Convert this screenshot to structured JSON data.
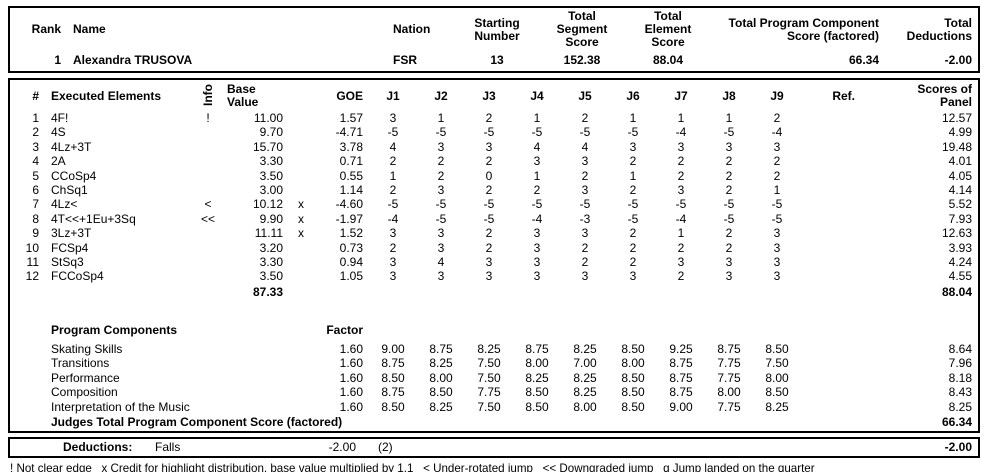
{
  "summary": {
    "headers": {
      "rank": "Rank",
      "name": "Name",
      "nation": "Nation",
      "starting_number": "Starting\nNumber",
      "total_segment": "Total\nSegment\nScore",
      "total_element": "Total\nElement\nScore",
      "total_pcs": "Total Program Component\nScore (factored)",
      "total_deductions": "Total\nDeductions"
    },
    "skater": {
      "rank": "1",
      "name": "Alexandra TRUSOVA",
      "nation": "FSR",
      "starting_number": "13",
      "total_segment": "152.38",
      "total_element": "88.04",
      "total_pcs": "66.34",
      "total_deductions": "-2.00"
    }
  },
  "elements_table": {
    "headers": {
      "num": "#",
      "name": "Executed Elements",
      "info": "Info",
      "base": "Base\nValue",
      "goe": "GOE",
      "judges": [
        "J1",
        "J2",
        "J3",
        "J4",
        "J5",
        "J6",
        "J7",
        "J8",
        "J9"
      ],
      "ref": "Ref.",
      "panel": "Scores of\nPanel"
    },
    "rows": [
      {
        "num": "1",
        "name": "4F!",
        "info": "!",
        "base": "11.00",
        "x": "",
        "goe": "1.57",
        "j": [
          "3",
          "1",
          "2",
          "1",
          "2",
          "1",
          "1",
          "1",
          "2"
        ],
        "ref": "",
        "panel": "12.57"
      },
      {
        "num": "2",
        "name": "4S",
        "info": "",
        "base": "9.70",
        "x": "",
        "goe": "-4.71",
        "j": [
          "-5",
          "-5",
          "-5",
          "-5",
          "-5",
          "-5",
          "-4",
          "-5",
          "-4"
        ],
        "ref": "",
        "panel": "4.99"
      },
      {
        "num": "3",
        "name": "4Lz+3T",
        "info": "",
        "base": "15.70",
        "x": "",
        "goe": "3.78",
        "j": [
          "4",
          "3",
          "3",
          "4",
          "4",
          "3",
          "3",
          "3",
          "3"
        ],
        "ref": "",
        "panel": "19.48"
      },
      {
        "num": "4",
        "name": "2A",
        "info": "",
        "base": "3.30",
        "x": "",
        "goe": "0.71",
        "j": [
          "2",
          "2",
          "2",
          "3",
          "3",
          "2",
          "2",
          "2",
          "2"
        ],
        "ref": "",
        "panel": "4.01"
      },
      {
        "num": "5",
        "name": "CCoSp4",
        "info": "",
        "base": "3.50",
        "x": "",
        "goe": "0.55",
        "j": [
          "1",
          "2",
          "0",
          "1",
          "2",
          "1",
          "2",
          "2",
          "2"
        ],
        "ref": "",
        "panel": "4.05"
      },
      {
        "num": "6",
        "name": "ChSq1",
        "info": "",
        "base": "3.00",
        "x": "",
        "goe": "1.14",
        "j": [
          "2",
          "3",
          "2",
          "2",
          "3",
          "2",
          "3",
          "2",
          "1"
        ],
        "ref": "",
        "panel": "4.14"
      },
      {
        "num": "7",
        "name": "4Lz<",
        "info": "<",
        "base": "10.12",
        "x": "x",
        "goe": "-4.60",
        "j": [
          "-5",
          "-5",
          "-5",
          "-5",
          "-5",
          "-5",
          "-5",
          "-5",
          "-5"
        ],
        "ref": "",
        "panel": "5.52"
      },
      {
        "num": "8",
        "name": "4T<<+1Eu+3Sq",
        "info": "<<",
        "base": "9.90",
        "x": "x",
        "goe": "-1.97",
        "j": [
          "-4",
          "-5",
          "-5",
          "-4",
          "-3",
          "-5",
          "-4",
          "-5",
          "-5"
        ],
        "ref": "",
        "panel": "7.93"
      },
      {
        "num": "9",
        "name": "3Lz+3T",
        "info": "",
        "base": "11.11",
        "x": "x",
        "goe": "1.52",
        "j": [
          "3",
          "3",
          "2",
          "3",
          "3",
          "2",
          "1",
          "2",
          "3"
        ],
        "ref": "",
        "panel": "12.63"
      },
      {
        "num": "10",
        "name": "FCSp4",
        "info": "",
        "base": "3.20",
        "x": "",
        "goe": "0.73",
        "j": [
          "2",
          "3",
          "2",
          "3",
          "2",
          "2",
          "2",
          "2",
          "3"
        ],
        "ref": "",
        "panel": "3.93"
      },
      {
        "num": "11",
        "name": "StSq3",
        "info": "",
        "base": "3.30",
        "x": "",
        "goe": "0.94",
        "j": [
          "3",
          "4",
          "3",
          "3",
          "2",
          "2",
          "3",
          "3",
          "3"
        ],
        "ref": "",
        "panel": "4.24"
      },
      {
        "num": "12",
        "name": "FCCoSp4",
        "info": "",
        "base": "3.50",
        "x": "",
        "goe": "1.05",
        "j": [
          "3",
          "3",
          "3",
          "3",
          "3",
          "3",
          "2",
          "3",
          "3"
        ],
        "ref": "",
        "panel": "4.55"
      }
    ],
    "total_base": "87.33",
    "total_panel": "88.04"
  },
  "components": {
    "title": "Program Components",
    "factor_label": "Factor",
    "rows": [
      {
        "name": "Skating Skills",
        "factor": "1.60",
        "j": [
          "9.00",
          "8.75",
          "8.25",
          "8.75",
          "8.25",
          "8.50",
          "9.25",
          "8.75",
          "8.50"
        ],
        "panel": "8.64"
      },
      {
        "name": "Transitions",
        "factor": "1.60",
        "j": [
          "8.75",
          "8.25",
          "7.50",
          "8.00",
          "7.00",
          "8.00",
          "8.75",
          "7.75",
          "7.50"
        ],
        "panel": "7.96"
      },
      {
        "name": "Performance",
        "factor": "1.60",
        "j": [
          "8.50",
          "8.00",
          "7.50",
          "8.25",
          "8.25",
          "8.50",
          "8.75",
          "7.75",
          "8.00"
        ],
        "panel": "8.18"
      },
      {
        "name": "Composition",
        "factor": "1.60",
        "j": [
          "8.75",
          "8.50",
          "7.75",
          "8.50",
          "8.25",
          "8.50",
          "8.75",
          "8.00",
          "8.50"
        ],
        "panel": "8.43"
      },
      {
        "name": "Interpretation of the Music",
        "factor": "1.60",
        "j": [
          "8.50",
          "8.25",
          "7.50",
          "8.50",
          "8.00",
          "8.50",
          "9.00",
          "7.75",
          "8.25"
        ],
        "panel": "8.25"
      }
    ],
    "total_label": "Judges Total Program Component Score (factored)",
    "total_value": "66.34"
  },
  "deductions": {
    "label": "Deductions:",
    "reason": "Falls",
    "value": "-2.00",
    "count": "(2)",
    "total": "-2.00"
  },
  "footnote": "! Not clear edge   x Credit for highlight distribution, base value multiplied by 1.1   < Under-rotated jump   << Downgraded jump   q Jump landed on the quarter"
}
